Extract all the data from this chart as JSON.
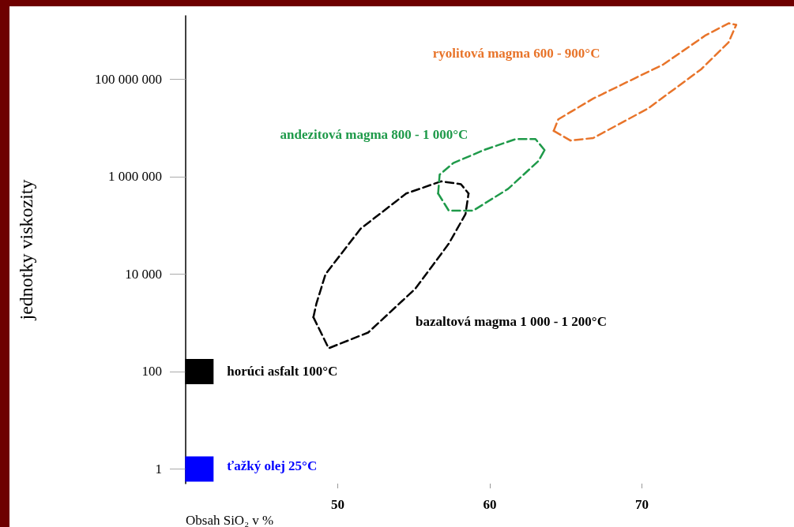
{
  "chart_data": {
    "type": "line",
    "xlabel": "Obsah SiO₂ v %",
    "ylabel": "jednotky viskozity",
    "xlim": [
      40,
      80
    ],
    "xticks": [
      50,
      60,
      70
    ],
    "log": "y",
    "ylim": [
      0.5,
      2000000000
    ],
    "yticks": [
      1,
      100,
      {
        "value": 10000,
        "label": "10 000"
      },
      {
        "value": 1000000,
        "label": "1 000 000"
      },
      {
        "value": 100000000,
        "label": "100 000 000"
      }
    ],
    "grid": false,
    "line_style": "dashed",
    "marker": "none",
    "series": [
      {
        "name": "bazaltová magma 1 000 - 1 200°C",
        "color": "#000000",
        "x": [
          48.4,
          49.4,
          52.0,
          55.1,
          57.3,
          58.4,
          58.6
        ],
        "values": [
          1300,
          300,
          630,
          5000,
          42000,
          170000,
          450000
        ]
      },
      {
        "color": "#000000",
        "x": [
          48.4,
          48.6,
          49.2,
          51.5,
          54.5,
          56.8,
          58.1,
          58.6
        ],
        "values": [
          1300,
          2500,
          10000,
          85000,
          450000,
          800000,
          700000,
          450000
        ]
      },
      {
        "name": "andezitová magma 800 - 1 000°C",
        "color": "#1f9a4a",
        "x": [
          56.6,
          56.7,
          57.6,
          59.6,
          61.7,
          63.0,
          63.6
        ],
        "values": [
          450000,
          1100000,
          1900000,
          3500000,
          5900000,
          5900000,
          3500000
        ]
      },
      {
        "color": "#1f9a4a",
        "x": [
          56.6,
          57.3,
          58.9,
          61.2,
          63.2,
          63.6
        ],
        "values": [
          450000,
          200000,
          200000,
          560000,
          2100000,
          3500000
        ]
      },
      {
        "name": "ryolitová magma 600 - 900°C",
        "color": "#e8742a",
        "x": [
          64.2,
          64.5,
          66.8,
          71.4,
          74.2,
          75.7,
          76.2
        ],
        "values": [
          8700000,
          15000000,
          40000000,
          200000000,
          800000000,
          1400000000,
          1300000000
        ]
      },
      {
        "color": "#e8742a",
        "x": [
          64.2,
          65.3,
          66.8,
          70.4,
          73.9,
          75.7,
          76.2
        ],
        "values": [
          8700000,
          5500000,
          6200000,
          25000000,
          160000000,
          570000000,
          1300000000
        ]
      },
      {
        "name": "horúci asfalt 100°C",
        "type": "scatter",
        "marker": "square",
        "color": "#000000",
        "x": [
          40.9
        ],
        "values": [
          100
        ]
      },
      {
        "name": "ťažký olej 25°C",
        "type": "scatter",
        "marker": "square",
        "color": "#0000ff",
        "x": [
          40.9
        ],
        "values": [
          1
        ]
      }
    ]
  }
}
